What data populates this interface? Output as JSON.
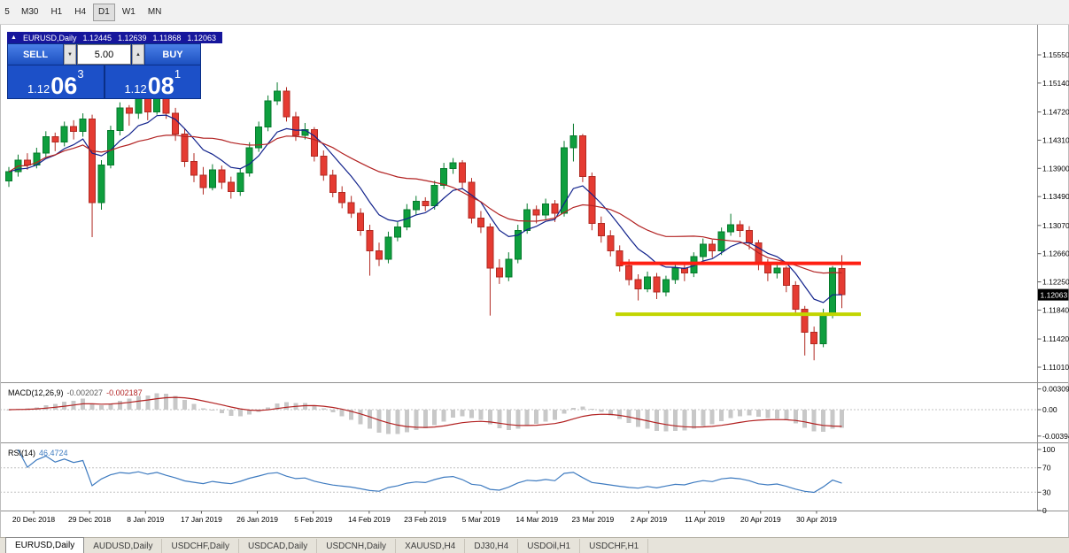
{
  "toolbar": {
    "timeframes": [
      {
        "label": "5",
        "active": false
      },
      {
        "label": "M30",
        "active": false
      },
      {
        "label": "H1",
        "active": false
      },
      {
        "label": "H4",
        "active": false
      },
      {
        "label": "D1",
        "active": true
      },
      {
        "label": "W1",
        "active": false
      },
      {
        "label": "MN",
        "active": false
      }
    ]
  },
  "chart_caption": {
    "marker": "▲",
    "symbol": "EURUSD,Daily",
    "open": "1.12445",
    "high": "1.12639",
    "low": "1.11868",
    "close": "1.12063"
  },
  "trade_panel": {
    "sell_label": "SELL",
    "buy_label": "BUY",
    "volume": "5.00",
    "bid": {
      "prefix": "1.12",
      "big": "06",
      "sup": "3"
    },
    "ask": {
      "prefix": "1.12",
      "big": "08",
      "sup": "1"
    }
  },
  "icons": {
    "volume_down": "▼",
    "volume_up": "▲"
  },
  "macd": {
    "title": "MACD(12,26,9)",
    "main_value": "-0.002027",
    "signal_value": "-0.002187",
    "axis_labels": [
      "0.003095",
      "0.00",
      "-0.00394"
    ]
  },
  "rsi": {
    "title": "RSI(14)",
    "value": "46.4724",
    "axis_labels": [
      "100",
      "70",
      "30",
      "0"
    ],
    "levels": [
      70,
      30
    ]
  },
  "colors": {
    "up_fill": "#0e9f3e",
    "up_stroke": "#067a2c",
    "down_fill": "#e53b32",
    "down_stroke": "#b02a22",
    "ma_fast": "#10218b",
    "ma_slow": "#b22222",
    "macd_hist": "#c8c8c8",
    "macd_signal": "#b22222",
    "rsi_line": "#3e7bc0",
    "separator": "#909090",
    "dotted": "#c0c0c0",
    "badge_bg": "#000000",
    "badge_text": "#ffffff",
    "axis_text": "#000000"
  },
  "chart_data": {
    "type": "candlestick",
    "title": "EURUSD,Daily",
    "symbol": "EURUSD",
    "timeframe": "Daily",
    "ylim": {
      "min": 1.1079,
      "max": 1.1594
    },
    "y_ticks": [
      "1.15550",
      "1.15140",
      "1.14720",
      "1.14310",
      "1.13900",
      "1.13490",
      "1.13070",
      "1.12660",
      "1.12250",
      "1.11840",
      "1.11420",
      "1.11010"
    ],
    "current_price": "1.12063",
    "x_labels": [
      "20 Dec 2018",
      "29 Dec 2018",
      "8 Jan 2019",
      "17 Jan 2019",
      "26 Jan 2019",
      "5 Feb 2019",
      "14 Feb 2019",
      "23 Feb 2019",
      "5 Mar 2019",
      "14 Mar 2019",
      "23 Mar 2019",
      "2 Apr 2019",
      "11 Apr 2019",
      "20 Apr 2019",
      "30 Apr 2019"
    ],
    "ma_overlays": [
      {
        "period": 8,
        "type": "ema",
        "color": "#10218b"
      },
      {
        "period": 20,
        "type": "sma",
        "color": "#b22222"
      }
    ],
    "lines": [
      {
        "name": "resistance",
        "price": 1.1252,
        "x_from": 700,
        "x_to": 972,
        "color": "#ff1f12",
        "width": 4
      },
      {
        "name": "support",
        "price": 1.1178,
        "x_from": 695,
        "x_to": 972,
        "color": "#c2d500",
        "width": 4
      }
    ],
    "indicators": {
      "macd": {
        "fast": 12,
        "slow": 26,
        "signal": 9
      },
      "rsi": {
        "period": 14
      }
    },
    "ohlc": [
      [
        1.1372,
        1.1392,
        1.1363,
        1.1385
      ],
      [
        1.1385,
        1.141,
        1.1378,
        1.1402
      ],
      [
        1.1402,
        1.1412,
        1.1388,
        1.1395
      ],
      [
        1.1395,
        1.142,
        1.139,
        1.1412
      ],
      [
        1.1412,
        1.1444,
        1.1405,
        1.1436
      ],
      [
        1.1436,
        1.1442,
        1.1415,
        1.1428
      ],
      [
        1.1428,
        1.1458,
        1.1422,
        1.1451
      ],
      [
        1.1451,
        1.146,
        1.1432,
        1.1444
      ],
      [
        1.1444,
        1.147,
        1.1436,
        1.1462
      ],
      [
        1.1462,
        1.1468,
        1.129,
        1.134
      ],
      [
        1.134,
        1.1402,
        1.133,
        1.1395
      ],
      [
        1.1395,
        1.1452,
        1.139,
        1.1445
      ],
      [
        1.1445,
        1.1486,
        1.1438,
        1.1478
      ],
      [
        1.1478,
        1.1482,
        1.1452,
        1.147
      ],
      [
        1.147,
        1.1506,
        1.1462,
        1.1498
      ],
      [
        1.1498,
        1.1504,
        1.146,
        1.1472
      ],
      [
        1.1472,
        1.1516,
        1.1468,
        1.1502
      ],
      [
        1.1502,
        1.151,
        1.1462,
        1.147
      ],
      [
        1.147,
        1.1478,
        1.143,
        1.144
      ],
      [
        1.144,
        1.1448,
        1.1392,
        1.14
      ],
      [
        1.14,
        1.1412,
        1.137,
        1.138
      ],
      [
        1.138,
        1.1392,
        1.1352,
        1.1362
      ],
      [
        1.1362,
        1.1396,
        1.1358,
        1.1388
      ],
      [
        1.1388,
        1.1394,
        1.136,
        1.137
      ],
      [
        1.137,
        1.1378,
        1.1346,
        1.1356
      ],
      [
        1.1356,
        1.139,
        1.135,
        1.1383
      ],
      [
        1.1383,
        1.1428,
        1.1378,
        1.142
      ],
      [
        1.142,
        1.1458,
        1.1414,
        1.145
      ],
      [
        1.145,
        1.1496,
        1.1444,
        1.1488
      ],
      [
        1.1488,
        1.1515,
        1.1482,
        1.1502
      ],
      [
        1.1502,
        1.1508,
        1.1458,
        1.1465
      ],
      [
        1.1465,
        1.1472,
        1.143,
        1.1438
      ],
      [
        1.1438,
        1.1456,
        1.1432,
        1.1446
      ],
      [
        1.1446,
        1.145,
        1.14,
        1.1408
      ],
      [
        1.1408,
        1.1416,
        1.1372,
        1.138
      ],
      [
        1.138,
        1.1388,
        1.1348,
        1.1355
      ],
      [
        1.1355,
        1.1364,
        1.1332,
        1.134
      ],
      [
        1.134,
        1.135,
        1.1318,
        1.1325
      ],
      [
        1.1325,
        1.1332,
        1.1292,
        1.13
      ],
      [
        1.13,
        1.1308,
        1.1234,
        1.127
      ],
      [
        1.127,
        1.1282,
        1.1248,
        1.1258
      ],
      [
        1.1258,
        1.1298,
        1.1252,
        1.129
      ],
      [
        1.129,
        1.1312,
        1.1284,
        1.1305
      ],
      [
        1.1305,
        1.1338,
        1.13,
        1.133
      ],
      [
        1.133,
        1.135,
        1.1322,
        1.1342
      ],
      [
        1.1342,
        1.1348,
        1.1328,
        1.1336
      ],
      [
        1.1336,
        1.1372,
        1.133,
        1.1365
      ],
      [
        1.1365,
        1.1398,
        1.136,
        1.139
      ],
      [
        1.139,
        1.1405,
        1.1382,
        1.1398
      ],
      [
        1.1398,
        1.1402,
        1.136,
        1.137
      ],
      [
        1.137,
        1.1376,
        1.131,
        1.1318
      ],
      [
        1.1318,
        1.1328,
        1.1296,
        1.1305
      ],
      [
        1.1305,
        1.131,
        1.1176,
        1.1245
      ],
      [
        1.1245,
        1.1258,
        1.1222,
        1.1232
      ],
      [
        1.1232,
        1.1268,
        1.1226,
        1.1258
      ],
      [
        1.1258,
        1.1308,
        1.1252,
        1.13
      ],
      [
        1.13,
        1.1339,
        1.1295,
        1.133
      ],
      [
        1.133,
        1.1336,
        1.131,
        1.1322
      ],
      [
        1.1322,
        1.1346,
        1.1316,
        1.1338
      ],
      [
        1.1338,
        1.1344,
        1.1312,
        1.1325
      ],
      [
        1.1325,
        1.143,
        1.132,
        1.142
      ],
      [
        1.142,
        1.1455,
        1.14,
        1.1437
      ],
      [
        1.1437,
        1.144,
        1.137,
        1.1378
      ],
      [
        1.1378,
        1.1384,
        1.13,
        1.131
      ],
      [
        1.131,
        1.132,
        1.1282,
        1.1292
      ],
      [
        1.1292,
        1.13,
        1.1262,
        1.127
      ],
      [
        1.127,
        1.1278,
        1.124,
        1.1248
      ],
      [
        1.1248,
        1.1258,
        1.122,
        1.1228
      ],
      [
        1.1228,
        1.1236,
        1.1198,
        1.1215
      ],
      [
        1.1215,
        1.124,
        1.121,
        1.1232
      ],
      [
        1.1232,
        1.1238,
        1.12,
        1.121
      ],
      [
        1.121,
        1.1234,
        1.1204,
        1.1228
      ],
      [
        1.1228,
        1.1252,
        1.1222,
        1.1245
      ],
      [
        1.1245,
        1.125,
        1.1226,
        1.1238
      ],
      [
        1.1238,
        1.1268,
        1.1232,
        1.1262
      ],
      [
        1.1262,
        1.1288,
        1.1256,
        1.128
      ],
      [
        1.128,
        1.1286,
        1.126,
        1.127
      ],
      [
        1.127,
        1.1304,
        1.1264,
        1.1298
      ],
      [
        1.1298,
        1.1324,
        1.1292,
        1.1308
      ],
      [
        1.1308,
        1.1314,
        1.129,
        1.13
      ],
      [
        1.13,
        1.1306,
        1.1272,
        1.1282
      ],
      [
        1.1282,
        1.1286,
        1.1242,
        1.125
      ],
      [
        1.125,
        1.1258,
        1.1226,
        1.1238
      ],
      [
        1.1238,
        1.1252,
        1.123,
        1.1245
      ],
      [
        1.1245,
        1.1248,
        1.121,
        1.122
      ],
      [
        1.122,
        1.1226,
        1.1178,
        1.1185
      ],
      [
        1.1185,
        1.119,
        1.1118,
        1.1152
      ],
      [
        1.1152,
        1.116,
        1.1111,
        1.1135
      ],
      [
        1.1135,
        1.1186,
        1.113,
        1.1178
      ],
      [
        1.1178,
        1.1248,
        1.1172,
        1.1245
      ],
      [
        1.12445,
        1.12639,
        1.11868,
        1.12063
      ]
    ]
  },
  "tabs": [
    {
      "label": "EURUSD,Daily",
      "active": true
    },
    {
      "label": "AUDUSD,Daily",
      "active": false
    },
    {
      "label": "USDCHF,Daily",
      "active": false
    },
    {
      "label": "USDCAD,Daily",
      "active": false
    },
    {
      "label": "USDCNH,Daily",
      "active": false
    },
    {
      "label": "XAUUSD,H4",
      "active": false
    },
    {
      "label": "DJ30,H4",
      "active": false
    },
    {
      "label": "USDOil,H1",
      "active": false
    },
    {
      "label": "USDCHF,H1",
      "active": false
    }
  ]
}
